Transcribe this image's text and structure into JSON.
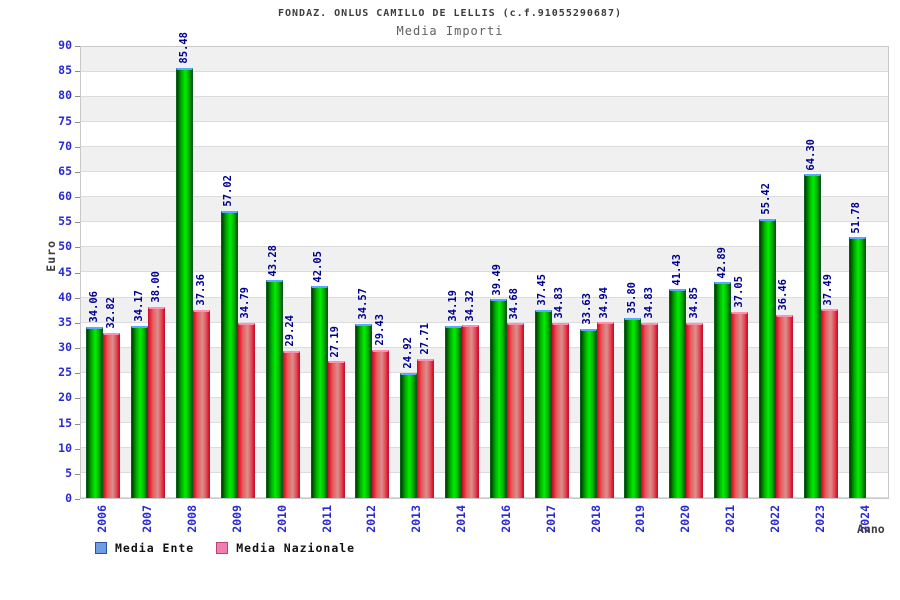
{
  "header": {
    "title": "FONDAZ. ONLUS CAMILLO DE LELLIS (c.f.91055290687)",
    "subtitle": "Media Importi"
  },
  "chart_data": {
    "type": "bar",
    "title": "FONDAZ. ONLUS CAMILLO DE LELLIS (c.f.91055290687)",
    "subtitle": "Media Importi",
    "xlabel": "Anno",
    "ylabel": "Euro",
    "ylim": [
      0,
      90
    ],
    "ytick_step": 5,
    "grid": "horizontal-bands-alternating",
    "legend_position": "bottom-left",
    "value_label_format": "2-decimals-rotated-90",
    "categories": [
      "2006",
      "2007",
      "2008",
      "2009",
      "2010",
      "2011",
      "2012",
      "2013",
      "2014",
      "2016",
      "2017",
      "2018",
      "2019",
      "2020",
      "2021",
      "2022",
      "2023",
      "2024"
    ],
    "series": [
      {
        "name": "Media Ente",
        "bar_color": "#00c400",
        "legend_swatch_color": "#6d9de3",
        "values": [
          34.06,
          34.17,
          85.48,
          57.02,
          43.28,
          42.05,
          34.57,
          24.92,
          34.19,
          39.49,
          37.45,
          33.63,
          35.8,
          41.43,
          42.89,
          55.42,
          64.3,
          51.78
        ]
      },
      {
        "name": "Media Nazionale",
        "bar_color": "#e04050",
        "legend_swatch_color": "#ef7fb1",
        "values": [
          32.82,
          38.0,
          37.36,
          34.79,
          29.24,
          27.19,
          29.43,
          27.71,
          34.32,
          34.68,
          34.83,
          34.94,
          34.83,
          34.85,
          37.05,
          36.46,
          37.49,
          null
        ]
      }
    ],
    "colors": {
      "axis_tick_text": "#2a2ad4",
      "value_label_text": "#000090",
      "band_gray": "#f0f0f0",
      "band_white": "#ffffff",
      "green_bar_cap": "#58a9ff",
      "red_bar_cap": "#ff8fb3"
    }
  }
}
